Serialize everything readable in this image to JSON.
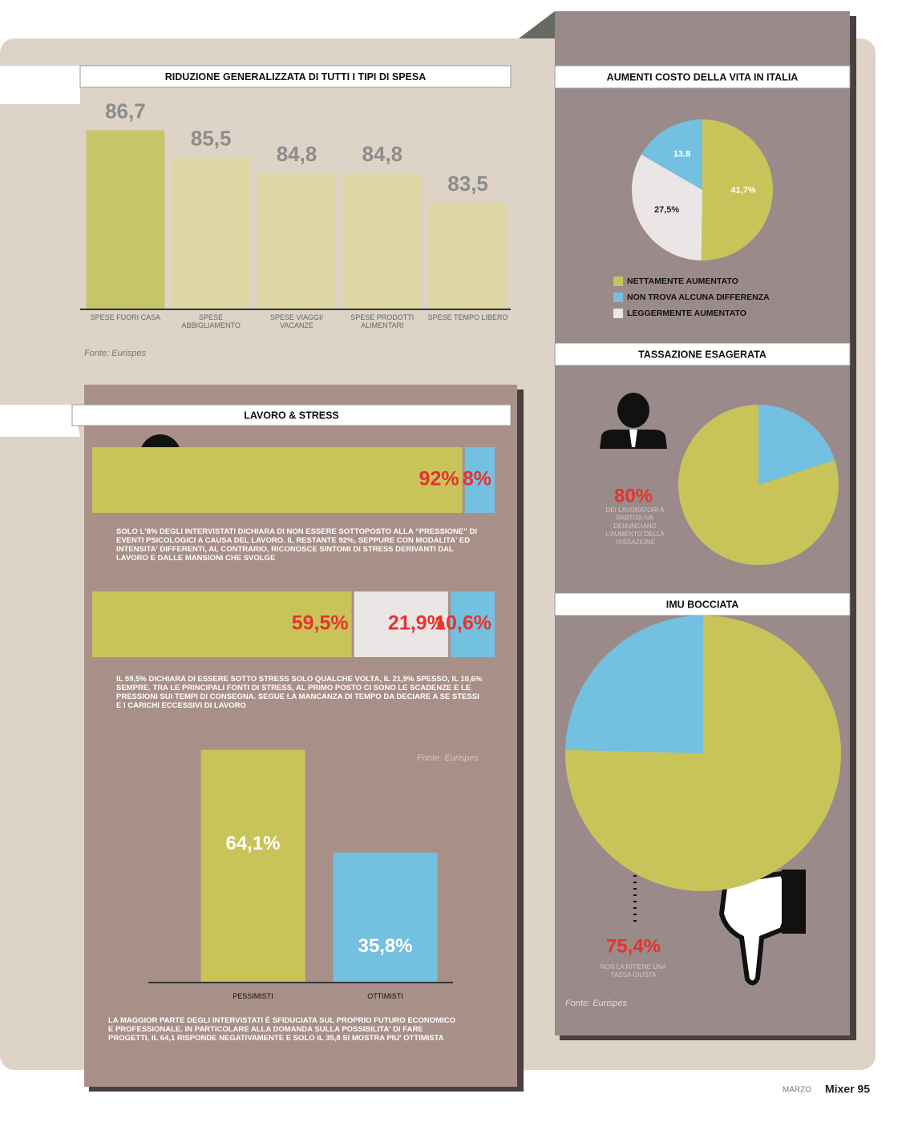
{
  "chart_data": [
    {
      "type": "bar",
      "title": "RIDUZIONE GENERALIZZATA DI TUTTI I TIPI DI SPESA",
      "categories": [
        "SPESE FUORI CASA",
        "SPESE ABBIGLIAMENTO",
        "SPESE VIAGGI/ VACANZE",
        "SPESE PRODOTTI ALIMENTARI",
        "SPESE TEMPO LIBERO"
      ],
      "values": [
        86.7,
        85.5,
        84.8,
        84.8,
        83.5
      ],
      "value_labels": [
        "86,7",
        "85,5",
        "84,8",
        "84,8",
        "83,5"
      ],
      "colors": [
        "#c8c46a",
        "#dfd6a4",
        "#dfd6a4",
        "#dfd6a4",
        "#dfd6a4"
      ],
      "ylim": [
        78.8,
        87.5
      ],
      "source": "Fonte: Eurispes"
    },
    {
      "type": "pie",
      "title": "AUMENTI COSTO DELLA VITA IN ITALIA",
      "categories": [
        "NETTAMENTE AUMENTATO",
        "NON TROVA ALCUNA DIFFERENZA",
        "LEGGERMENTE AUMENTATO"
      ],
      "values": [
        41.7,
        13.8,
        27.5
      ],
      "value_labels": [
        "41,7%",
        "13.8",
        "27,5%"
      ],
      "colors": [
        "#c8c45a",
        "#74c0e0",
        "#ebe6e6"
      ]
    },
    {
      "type": "pie",
      "title": "TASSAZIONE ESAGERATA",
      "values": [
        80,
        20
      ],
      "value_labels": [
        "80%",
        null
      ],
      "colors": [
        "#c8c45a",
        "#74c0e0"
      ],
      "note": "DEI LAVORATORI A PARTITA IVA DENUNCIANO L'AUMENTO DELLA TASSAZIONE"
    },
    {
      "type": "pie",
      "title": "IMU BOCCIATA",
      "values": [
        75.4,
        24.6
      ],
      "value_labels": [
        "75,4%",
        null
      ],
      "colors": [
        "#c8c45a",
        "#74c0e0"
      ],
      "note": "NON LA RITIENE UNA TASSA GIUSTA",
      "source": "Fonte: Eurispes"
    },
    {
      "type": "stacked-bar",
      "title": "LAVORO & STRESS",
      "values": [
        92,
        8
      ],
      "value_labels": [
        "92%",
        "8%"
      ],
      "colors": [
        "#c8c45a",
        "#74c0e0"
      ],
      "xlim": [
        0,
        100
      ],
      "text": "SOLO L'8% DEGLI INTERVISTATI DICHIARA DI NON ESSERE SOTTOPOSTO ALLA “PRESSIONE” DI EVENTI PSICOLOGICI A CAUSA DEL LAVORO. IL RESTANTE 92%, SEPPURE CON MODALITA' ED INTENSITA' DIFFERENTI, AL CONTRARIO, RICONOSCE SINTOMI DI STRESS DERIVANTI DAL LAVORO E DALLE MANSIONI CHE SVOLGE"
    },
    {
      "type": "stacked-bar",
      "values": [
        59.5,
        21.9,
        10.6
      ],
      "value_labels": [
        "59,5%",
        "21,9%",
        "10,6%"
      ],
      "colors": [
        "#c8c45a",
        "#ebe6e6",
        "#74c0e0"
      ],
      "xlim": [
        0,
        92
      ],
      "text": "IL 59,5% DICHIARA DI ESSERE SOTTO STRESS SOLO QUALCHE VOLTA, IL 21,9% SPESSO, IL 10,6% SEMPRE. TRA LE PRINCIPALI FONTI DI STRESS, AL PRIMO POSTO CI SONO LE SCADENZE E LE PRESSIONI SUI TEMPI DI CONSEGNA. SEGUE LA MANCANZA DI TEMPO DA DECIARE A SE STESSI E I CARICHI ECCESSIVI DI LAVORO"
    },
    {
      "type": "bar",
      "categories": [
        "PESSIMISTI",
        "OTTIMISTI"
      ],
      "values": [
        64.1,
        35.8
      ],
      "value_labels": [
        "64,1%",
        "35,8%"
      ],
      "colors": [
        "#c8c45a",
        "#74c0e0"
      ],
      "ylim": [
        0,
        66
      ],
      "source": "Fonte: Eurispes",
      "text": "LA MAGGIOR PARTE DEGLI INTERVISTATI È SFIDUCIATA SUL PROPRIO FUTURO ECONOMICO E PROFESSIONALE. IN PARTICOLARE ALLA DOMANDA SULLA POSSIBILITA' DI FARE PROGETTI, IL 64,1 RISPONDE NEGATIVAMENTE E SOLO IL 35,8 SI MOSTRA PIU' OTTIMISTA"
    }
  ],
  "footer": {
    "month": "MARZO",
    "page": "Mixer 95"
  }
}
